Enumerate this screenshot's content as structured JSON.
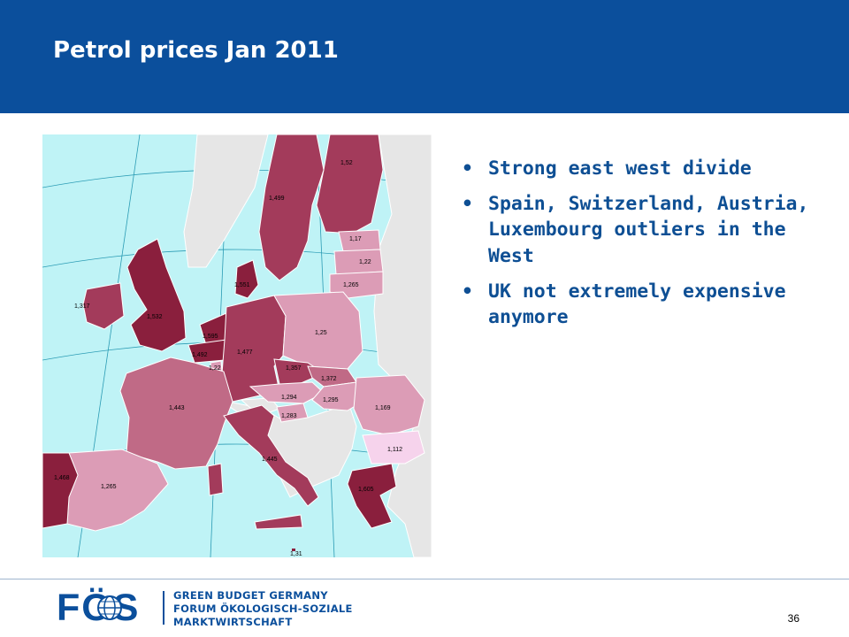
{
  "slide": {
    "title": "Petrol prices Jan 2011",
    "page_number": "36"
  },
  "bullets": [
    "Strong east west divide",
    "Spain, Switzerland, Austria, Luxembourg outliers in the West",
    "UK not extremely expensive anymore"
  ],
  "map": {
    "labels": {
      "finland": "1,52",
      "sweden": "1,499",
      "estonia": "1,17",
      "latvia": "1,22",
      "lithuania": "1,265",
      "denmark": "1,551",
      "ireland": "1,317",
      "uk": "1,532",
      "netherlands": "1,595",
      "belgium": "1,492",
      "luxembourg": "1,22",
      "germany": "1,477",
      "poland": "1,25",
      "czech": "1,357",
      "slovakia": "1,372",
      "austria": "1,294",
      "hungary": "1,295",
      "slovenia": "1,283",
      "romania": "1,169",
      "bulgaria": "1,112",
      "france": "1,443",
      "italy": "1,445",
      "portugal": "1,468",
      "spain": "1,265",
      "greece": "1,605",
      "malta": "1,31"
    },
    "colors": {
      "sea": "#bff3f6",
      "non_eu": "#e6e6e6",
      "darkest": "#8a1f3d",
      "dark": "#a33b5b",
      "medium": "#c06a86",
      "light": "#dc9cb6",
      "lightest": "#f6d3ec"
    }
  },
  "logo": {
    "mark": "FÖS",
    "lines": [
      "GREEN BUDGET GERMANY",
      "FORUM ÖKOLOGISCH-SOZIALE",
      "MARKTWIRTSCHAFT"
    ]
  },
  "header_color": "#0b4f9c",
  "text_color": "#0e4f94"
}
